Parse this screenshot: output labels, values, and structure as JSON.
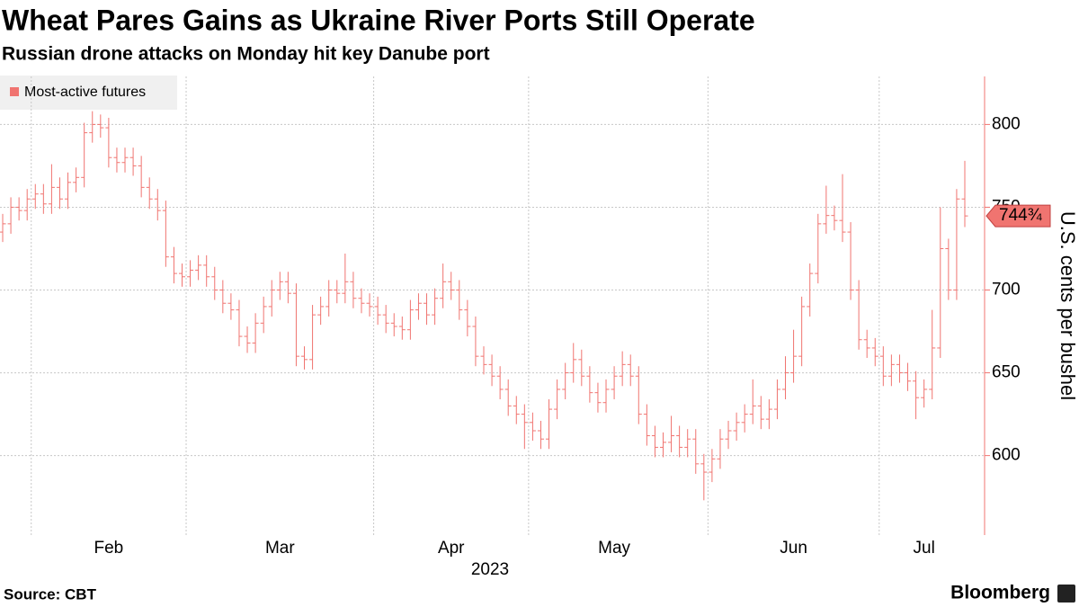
{
  "chart_data": {
    "type": "ohlc",
    "title": "Wheat Pares Gains as Ukraine River Ports Still Operate",
    "subtitle": "Russian drone attacks on Monday hit key Danube port",
    "series_name": "Most-active futures",
    "color": "#f07470",
    "ylabel": "U.S. cents per bushel",
    "xlabel": "2023",
    "source": "Source: CBT",
    "brand": "Bloomberg",
    "last_value": {
      "value": 744.75,
      "label": "744¾"
    },
    "ylim": [
      552,
      829
    ],
    "yticks": [
      600,
      650,
      700,
      750,
      800
    ],
    "grid": true,
    "xgrid": [
      3.5,
      22.5,
      45.5,
      64.5,
      86.5,
      107.5
    ],
    "categories": [
      null,
      null,
      null,
      null,
      null,
      null,
      null,
      null,
      null,
      null,
      null,
      null,
      null,
      "Feb",
      null,
      null,
      null,
      null,
      null,
      null,
      null,
      null,
      null,
      null,
      null,
      null,
      null,
      null,
      null,
      null,
      null,
      null,
      null,
      null,
      "Mar",
      null,
      null,
      null,
      null,
      null,
      null,
      null,
      null,
      null,
      null,
      null,
      null,
      null,
      null,
      null,
      null,
      null,
      null,
      null,
      null,
      "Apr",
      null,
      null,
      null,
      null,
      null,
      null,
      null,
      null,
      null,
      null,
      null,
      null,
      null,
      null,
      null,
      null,
      null,
      null,
      null,
      "May",
      null,
      null,
      null,
      null,
      null,
      null,
      null,
      null,
      null,
      null,
      null,
      null,
      null,
      null,
      null,
      null,
      null,
      null,
      null,
      null,
      null,
      "Jun",
      null,
      null,
      null,
      null,
      null,
      null,
      null,
      null,
      null,
      null,
      null,
      null,
      null,
      null,
      null,
      "Jul",
      null,
      null,
      null,
      null,
      null
    ],
    "open": [
      735,
      740,
      750,
      748,
      755,
      758,
      752,
      762,
      755,
      765,
      768,
      795,
      800,
      798,
      780,
      777,
      780,
      775,
      762,
      755,
      748,
      720,
      710,
      708,
      712,
      715,
      708,
      700,
      692,
      688,
      672,
      668,
      680,
      690,
      700,
      705,
      698,
      660,
      658,
      685,
      690,
      700,
      698,
      705,
      695,
      692,
      690,
      685,
      680,
      678,
      676,
      688,
      692,
      685,
      695,
      705,
      700,
      688,
      678,
      660,
      655,
      648,
      640,
      630,
      625,
      620,
      615,
      610,
      628,
      640,
      650,
      658,
      648,
      638,
      632,
      640,
      648,
      655,
      648,
      625,
      612,
      605,
      608,
      612,
      605,
      610,
      595,
      590,
      598,
      610,
      615,
      620,
      625,
      630,
      622,
      628,
      640,
      650,
      660,
      690,
      710,
      740,
      745,
      742,
      735,
      700,
      670,
      665,
      660,
      648,
      655,
      650,
      645,
      635,
      640,
      665,
      725,
      700,
      755
    ],
    "high": [
      746,
      756,
      756,
      761,
      764,
      764,
      776,
      768,
      771,
      774,
      801,
      808,
      806,
      804,
      786,
      786,
      786,
      781,
      768,
      761,
      754,
      726,
      716,
      718,
      721,
      721,
      714,
      706,
      698,
      694,
      678,
      686,
      696,
      706,
      711,
      711,
      704,
      666,
      691,
      696,
      706,
      706,
      722,
      711,
      701,
      698,
      696,
      691,
      686,
      684,
      694,
      698,
      698,
      701,
      716,
      711,
      706,
      694,
      684,
      666,
      661,
      654,
      646,
      636,
      631,
      626,
      621,
      634,
      646,
      656,
      668,
      664,
      654,
      644,
      646,
      654,
      663,
      661,
      654,
      631,
      618,
      614,
      624,
      618,
      616,
      616,
      601,
      604,
      616,
      621,
      626,
      631,
      646,
      636,
      634,
      646,
      660,
      676,
      696,
      716,
      746,
      763,
      751,
      770,
      741,
      706,
      676,
      671,
      666,
      661,
      661,
      656,
      651,
      646,
      688,
      750,
      731,
      761,
      778
    ],
    "low": [
      729,
      734,
      742,
      742,
      749,
      746,
      746,
      749,
      749,
      759,
      762,
      789,
      792,
      774,
      771,
      771,
      769,
      756,
      749,
      742,
      714,
      704,
      702,
      702,
      706,
      702,
      694,
      686,
      682,
      666,
      662,
      662,
      674,
      684,
      694,
      692,
      654,
      652,
      652,
      679,
      684,
      692,
      692,
      689,
      686,
      684,
      679,
      674,
      672,
      670,
      670,
      682,
      679,
      679,
      689,
      694,
      682,
      672,
      654,
      649,
      642,
      634,
      624,
      619,
      604,
      609,
      604,
      604,
      622,
      634,
      644,
      642,
      632,
      626,
      626,
      634,
      642,
      642,
      619,
      606,
      599,
      599,
      602,
      599,
      599,
      589,
      573,
      584,
      592,
      604,
      609,
      614,
      619,
      616,
      616,
      622,
      634,
      644,
      654,
      684,
      704,
      734,
      736,
      729,
      694,
      664,
      659,
      654,
      642,
      642,
      644,
      639,
      622,
      629,
      634,
      659,
      694,
      694,
      738
    ],
    "close": [
      740,
      750,
      748,
      755,
      758,
      752,
      762,
      755,
      765,
      768,
      795,
      800,
      798,
      780,
      777,
      780,
      775,
      762,
      755,
      748,
      720,
      710,
      708,
      712,
      715,
      708,
      700,
      692,
      688,
      672,
      668,
      680,
      690,
      700,
      705,
      698,
      660,
      658,
      685,
      690,
      700,
      698,
      705,
      695,
      692,
      690,
      685,
      680,
      678,
      676,
      688,
      692,
      685,
      695,
      705,
      700,
      688,
      678,
      660,
      655,
      648,
      640,
      630,
      625,
      620,
      615,
      610,
      628,
      640,
      650,
      658,
      648,
      638,
      632,
      640,
      648,
      655,
      648,
      625,
      612,
      605,
      608,
      612,
      605,
      610,
      595,
      590,
      598,
      610,
      615,
      620,
      625,
      630,
      622,
      628,
      640,
      650,
      660,
      690,
      710,
      740,
      745,
      742,
      735,
      700,
      670,
      665,
      660,
      648,
      655,
      650,
      645,
      635,
      640,
      665,
      725,
      700,
      755,
      744.75
    ]
  }
}
